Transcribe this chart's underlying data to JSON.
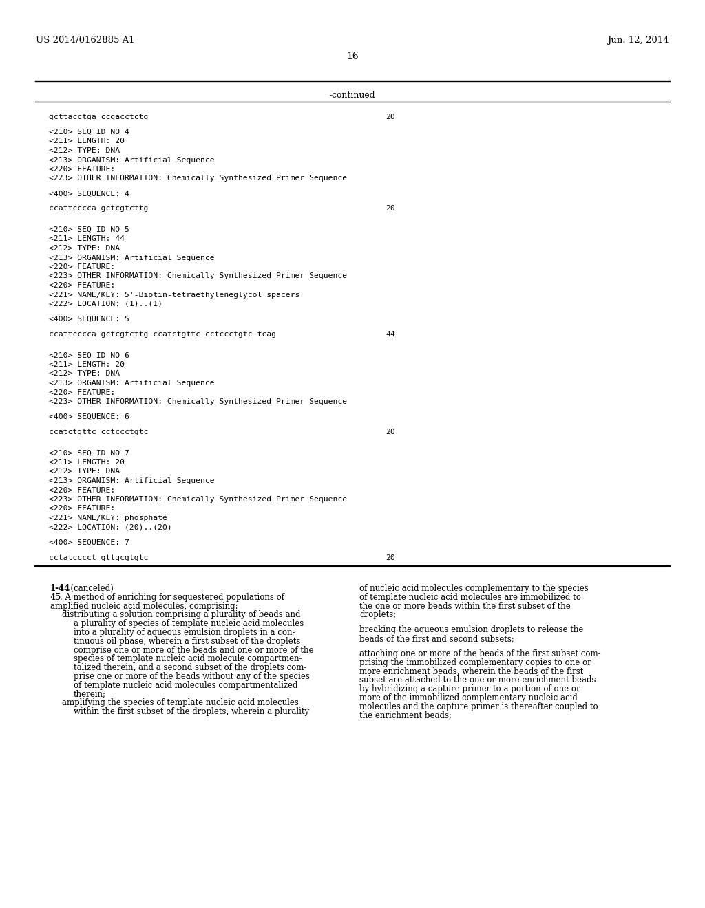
{
  "patent_number": "US 2014/0162885 A1",
  "date": "Jun. 12, 2014",
  "page_number": "16",
  "continued_label": "-continued",
  "bg_color": "#ffffff",
  "text_color": "#000000",
  "seq_lines": [
    {
      "type": "seq",
      "text": "gcttacctga ccgacctctg",
      "num": "20"
    },
    {
      "type": "blank"
    },
    {
      "type": "info",
      "text": "<210> SEQ ID NO 4"
    },
    {
      "type": "info",
      "text": "<211> LENGTH: 20"
    },
    {
      "type": "info",
      "text": "<212> TYPE: DNA"
    },
    {
      "type": "info",
      "text": "<213> ORGANISM: Artificial Sequence"
    },
    {
      "type": "info",
      "text": "<220> FEATURE:"
    },
    {
      "type": "info",
      "text": "<223> OTHER INFORMATION: Chemically Synthesized Primer Sequence"
    },
    {
      "type": "blank"
    },
    {
      "type": "info",
      "text": "<400> SEQUENCE: 4"
    },
    {
      "type": "blank"
    },
    {
      "type": "seq",
      "text": "ccattcccca gctcgtcttg",
      "num": "20"
    },
    {
      "type": "blank"
    },
    {
      "type": "blank"
    },
    {
      "type": "info",
      "text": "<210> SEQ ID NO 5"
    },
    {
      "type": "info",
      "text": "<211> LENGTH: 44"
    },
    {
      "type": "info",
      "text": "<212> TYPE: DNA"
    },
    {
      "type": "info",
      "text": "<213> ORGANISM: Artificial Sequence"
    },
    {
      "type": "info",
      "text": "<220> FEATURE:"
    },
    {
      "type": "info",
      "text": "<223> OTHER INFORMATION: Chemically Synthesized Primer Sequence"
    },
    {
      "type": "info",
      "text": "<220> FEATURE:"
    },
    {
      "type": "info",
      "text": "<221> NAME/KEY: 5'-Biotin-tetraethyleneglycol spacers"
    },
    {
      "type": "info",
      "text": "<222> LOCATION: (1)..(1)"
    },
    {
      "type": "blank"
    },
    {
      "type": "info",
      "text": "<400> SEQUENCE: 5"
    },
    {
      "type": "blank"
    },
    {
      "type": "seq",
      "text": "ccattcccca gctcgtcttg ccatctgttc cctccctgtc tcag",
      "num": "44"
    },
    {
      "type": "blank"
    },
    {
      "type": "blank"
    },
    {
      "type": "info",
      "text": "<210> SEQ ID NO 6"
    },
    {
      "type": "info",
      "text": "<211> LENGTH: 20"
    },
    {
      "type": "info",
      "text": "<212> TYPE: DNA"
    },
    {
      "type": "info",
      "text": "<213> ORGANISM: Artificial Sequence"
    },
    {
      "type": "info",
      "text": "<220> FEATURE:"
    },
    {
      "type": "info",
      "text": "<223> OTHER INFORMATION: Chemically Synthesized Primer Sequence"
    },
    {
      "type": "blank"
    },
    {
      "type": "info",
      "text": "<400> SEQUENCE: 6"
    },
    {
      "type": "blank"
    },
    {
      "type": "seq",
      "text": "ccatctgttc cctccctgtc",
      "num": "20"
    },
    {
      "type": "blank"
    },
    {
      "type": "blank"
    },
    {
      "type": "info",
      "text": "<210> SEQ ID NO 7"
    },
    {
      "type": "info",
      "text": "<211> LENGTH: 20"
    },
    {
      "type": "info",
      "text": "<212> TYPE: DNA"
    },
    {
      "type": "info",
      "text": "<213> ORGANISM: Artificial Sequence"
    },
    {
      "type": "info",
      "text": "<220> FEATURE:"
    },
    {
      "type": "info",
      "text": "<223> OTHER INFORMATION: Chemically Synthesized Primer Sequence"
    },
    {
      "type": "info",
      "text": "<220> FEATURE:"
    },
    {
      "type": "info",
      "text": "<221> NAME/KEY: phosphate"
    },
    {
      "type": "info",
      "text": "<222> LOCATION: (20)..(20)"
    },
    {
      "type": "blank"
    },
    {
      "type": "info",
      "text": "<400> SEQUENCE: 7"
    },
    {
      "type": "blank"
    },
    {
      "type": "seq",
      "text": "cctatcccct gttgcgtgtc",
      "num": "20"
    }
  ],
  "col1_lines": [
    {
      "style": "bold_only",
      "bold": "1-44",
      "rest": ". (canceled)"
    },
    {
      "style": "bold_start",
      "bold": "45",
      "rest": ". A method of enriching for sequestered populations of"
    },
    {
      "style": "plain_indent0",
      "text": "amplified nucleic acid molecules, comprising:"
    },
    {
      "style": "plain_indent1",
      "text": "distributing a solution comprising a plurality of beads and"
    },
    {
      "style": "plain_indent2",
      "text": "a plurality of species of template nucleic acid molecules"
    },
    {
      "style": "plain_indent2",
      "text": "into a plurality of aqueous emulsion droplets in a con-"
    },
    {
      "style": "plain_indent2",
      "text": "tinuous oil phase, wherein a first subset of the droplets"
    },
    {
      "style": "plain_indent2",
      "text": "comprise one or more of the beads and one or more of the"
    },
    {
      "style": "plain_indent2",
      "text": "species of template nucleic acid molecule compartmen-"
    },
    {
      "style": "plain_indent2",
      "text": "talized therein, and a second subset of the droplets com-"
    },
    {
      "style": "plain_indent2",
      "text": "prise one or more of the beads without any of the species"
    },
    {
      "style": "plain_indent2",
      "text": "of template nucleic acid molecules compartmentalized"
    },
    {
      "style": "plain_indent2",
      "text": "therein;"
    },
    {
      "style": "plain_indent1",
      "text": "amplifying the species of template nucleic acid molecules"
    },
    {
      "style": "plain_indent2",
      "text": "within the first subset of the droplets, wherein a plurality"
    }
  ],
  "col2_lines": [
    {
      "style": "plain",
      "text": "of nucleic acid molecules complementary to the species"
    },
    {
      "style": "plain",
      "text": "of template nucleic acid molecules are immobilized to"
    },
    {
      "style": "plain",
      "text": "the one or more beads within the first subset of the"
    },
    {
      "style": "plain",
      "text": "droplets;"
    },
    {
      "style": "blank"
    },
    {
      "style": "plain",
      "text": "breaking the aqueous emulsion droplets to release the"
    },
    {
      "style": "plain",
      "text": "beads of the first and second subsets;"
    },
    {
      "style": "blank"
    },
    {
      "style": "plain",
      "text": "attaching one or more of the beads of the first subset com-"
    },
    {
      "style": "plain",
      "text": "prising the immobilized complementary copies to one or"
    },
    {
      "style": "plain",
      "text": "more enrichment beads, wherein the beads of the first"
    },
    {
      "style": "plain",
      "text": "subset are attached to the one or more enrichment beads"
    },
    {
      "style": "plain",
      "text": "by hybridizing a capture primer to a portion of one or"
    },
    {
      "style": "plain",
      "text": "more of the immobilized complementary nucleic acid"
    },
    {
      "style": "plain",
      "text": "molecules and the capture primer is thereafter coupled to"
    },
    {
      "style": "plain",
      "text": "the enrichment beads;"
    }
  ]
}
